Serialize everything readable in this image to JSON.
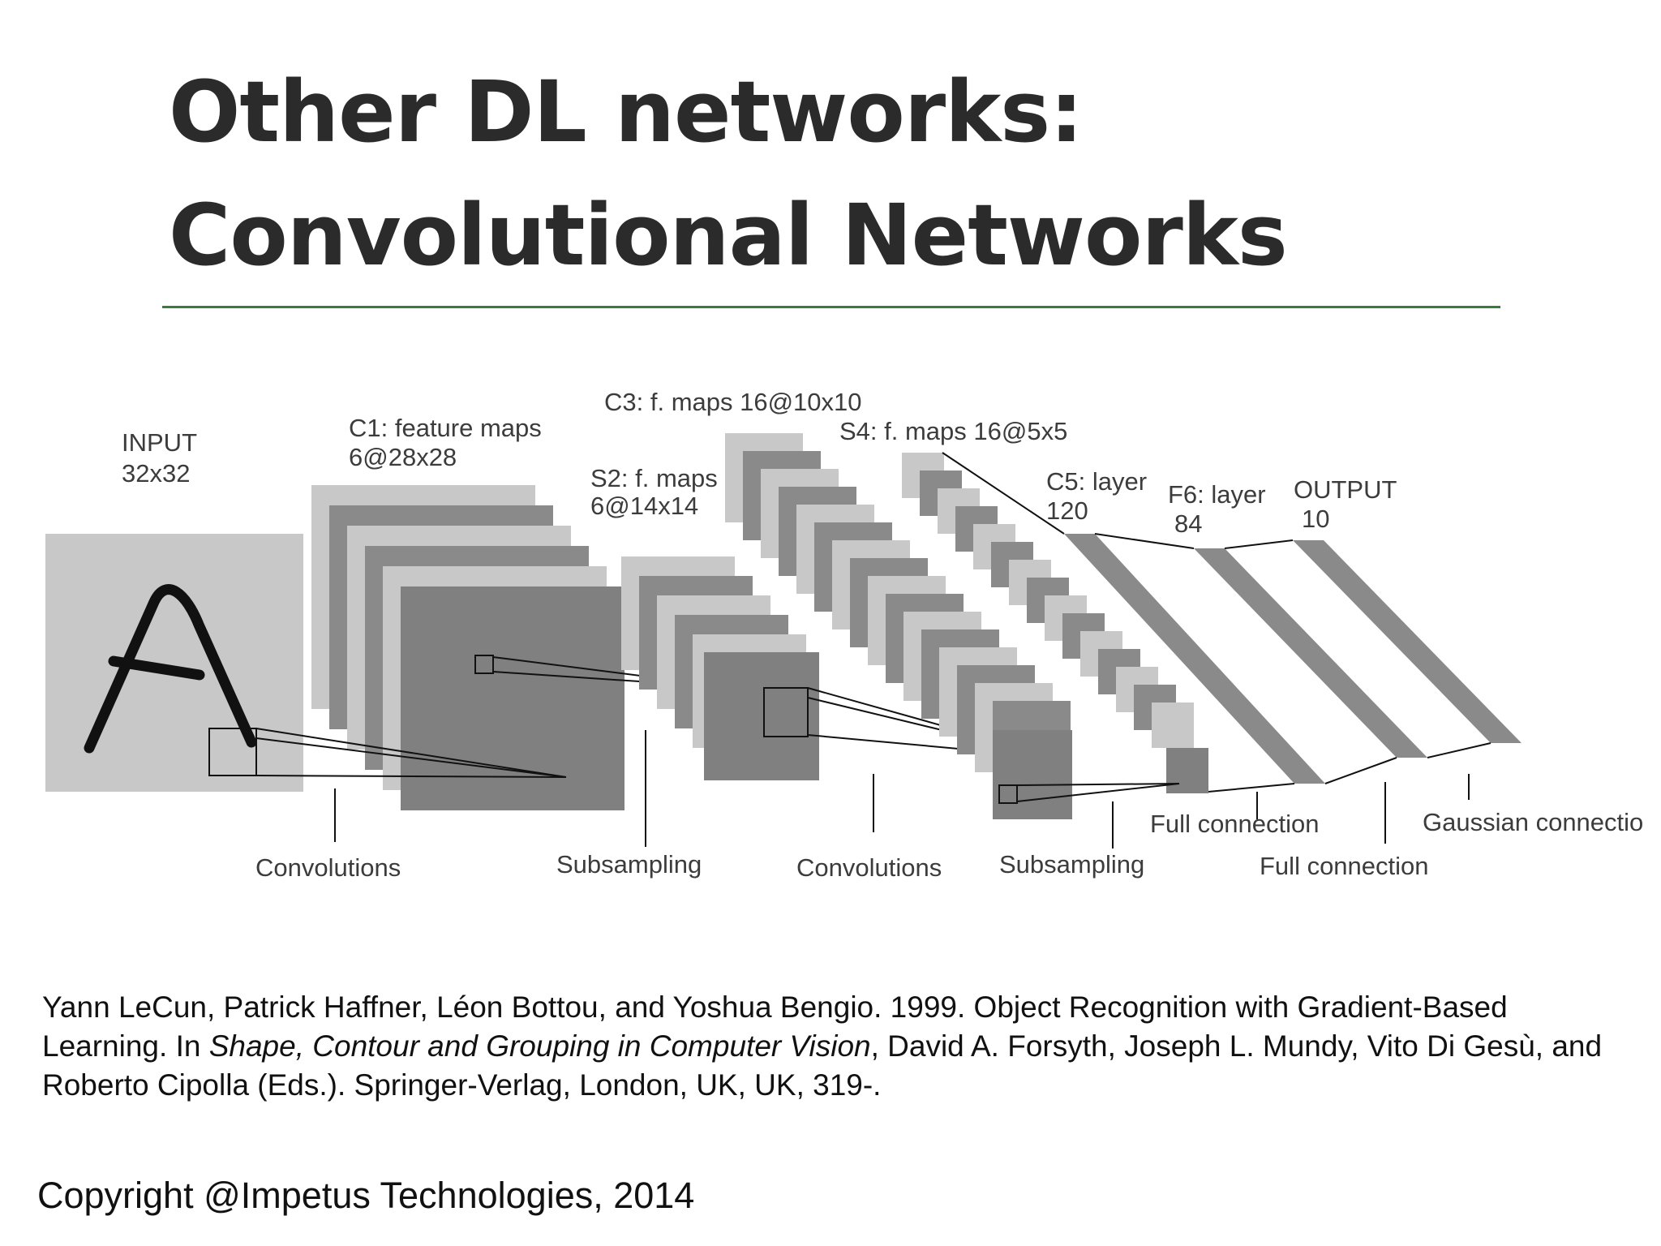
{
  "slide": {
    "title_line1": "Other DL networks:",
    "title_line2": "Convolutional Networks",
    "accent_color": "#3a7d3a"
  },
  "diagram": {
    "layers": {
      "input": {
        "name": "INPUT",
        "size": "32x32"
      },
      "c1": {
        "name": "C1: feature maps",
        "size": "6@28x28"
      },
      "s2": {
        "name": "S2: f. maps",
        "size": "6@14x14"
      },
      "c3": {
        "name": "C3: f. maps 16@10x10"
      },
      "s4": {
        "name": "S4: f. maps 16@5x5"
      },
      "c5": {
        "name": "C5: layer",
        "size": "120"
      },
      "f6": {
        "name": "F6: layer",
        "size": "84"
      },
      "output": {
        "name": "OUTPUT",
        "size": "10"
      }
    },
    "operations": {
      "conv1": "Convolutions",
      "sub1": "Subsampling",
      "conv2": "Convolutions",
      "sub2": "Subsampling",
      "full1": "Full connection",
      "full2": "Full connection",
      "gauss": "Gaussian connectio"
    }
  },
  "reference": {
    "part1": "Yann LeCun, Patrick Haffner, Léon Bottou, and Yoshua Bengio. 1999. Object Recognition with Gradient-Based Learning. In ",
    "italic": "Shape, Contour and Grouping in Computer Vision",
    "part2": ", David A. Forsyth, Joseph L. Mundy, Vito Di Gesù, and Roberto Cipolla (Eds.). Springer-Verlag, London, UK, UK, 319-."
  },
  "footer": {
    "copyright": "Copyright @Impetus Technologies, 2014"
  }
}
